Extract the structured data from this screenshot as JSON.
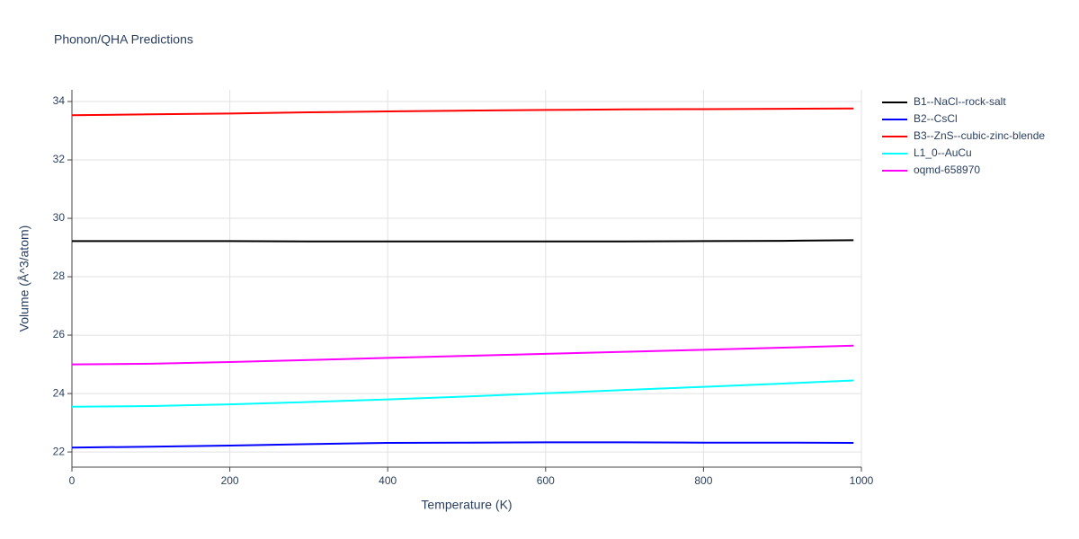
{
  "chart_data": {
    "type": "line",
    "title": "Phonon/QHA Predictions",
    "x_label": "Temperature (K)",
    "y_label": "Volume (Å^3/atom)",
    "x": [
      0,
      100,
      200,
      300,
      400,
      500,
      600,
      700,
      800,
      900,
      990
    ],
    "series": [
      {
        "name": "B1--NaCl--rock-salt",
        "color": "#000000",
        "values": [
          29.22,
          29.22,
          29.22,
          29.21,
          29.21,
          29.21,
          29.21,
          29.21,
          29.22,
          29.23,
          29.25
        ]
      },
      {
        "name": "B2--CsCl",
        "color": "#0000ff",
        "values": [
          22.15,
          22.18,
          22.22,
          22.27,
          22.31,
          22.32,
          22.33,
          22.33,
          22.32,
          22.32,
          22.31
        ]
      },
      {
        "name": "B3--ZnS--cubic-zinc-blende",
        "color": "#ff0000",
        "values": [
          33.53,
          33.56,
          33.59,
          33.63,
          33.66,
          33.69,
          33.71,
          33.73,
          33.74,
          33.75,
          33.76
        ]
      },
      {
        "name": "L1_0--AuCu",
        "color": "#00ffff",
        "values": [
          23.55,
          23.57,
          23.63,
          23.71,
          23.8,
          23.9,
          24.01,
          24.12,
          24.23,
          24.34,
          24.45
        ]
      },
      {
        "name": "oqmd-658970",
        "color": "#ff00ff",
        "values": [
          25.0,
          25.02,
          25.08,
          25.15,
          25.22,
          25.29,
          25.36,
          25.43,
          25.5,
          25.57,
          25.64
        ]
      }
    ],
    "xlim": [
      0,
      1000
    ],
    "xticks": [
      0,
      200,
      400,
      600,
      800,
      1000
    ],
    "ylim": [
      21.48,
      34.4
    ],
    "yticks": [
      22,
      24,
      26,
      28,
      30,
      32,
      34
    ],
    "grid": true,
    "legend": "top-right"
  }
}
